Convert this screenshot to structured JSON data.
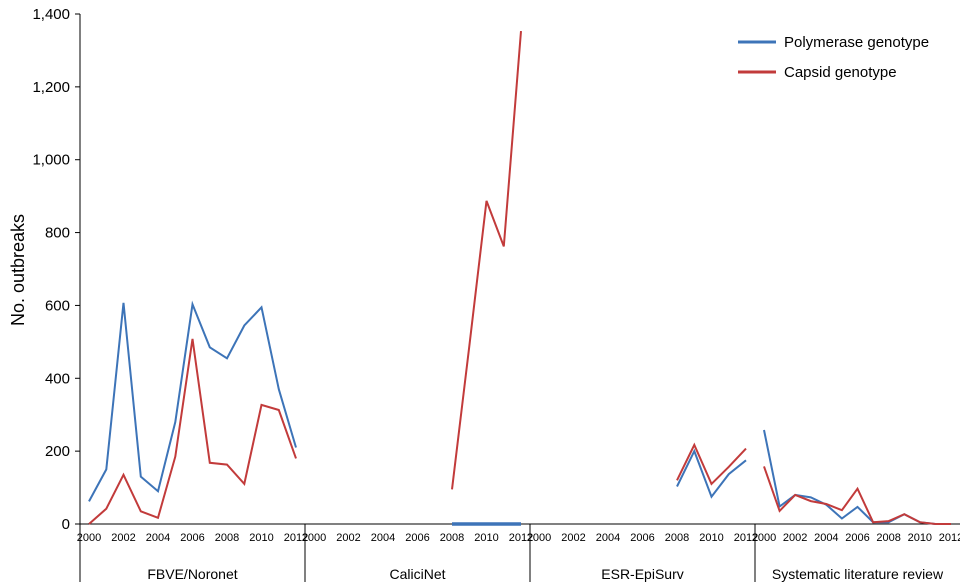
{
  "chart_data": {
    "type": "line",
    "ylabel": "No. outbreaks",
    "ylim": [
      0,
      1400
    ],
    "yticks": [
      0,
      200,
      400,
      600,
      800,
      1000,
      1200,
      1400
    ],
    "ytick_labels": [
      "0",
      "200",
      "400",
      "600",
      "800",
      "1,000",
      "1,200",
      "1,400"
    ],
    "xtick_labels": [
      "2000",
      "2002",
      "2004",
      "2006",
      "2008",
      "2010",
      "2012"
    ],
    "years": [
      2000,
      2001,
      2002,
      2003,
      2004,
      2005,
      2006,
      2007,
      2008,
      2009,
      2010,
      2011,
      2012
    ],
    "legend": {
      "position": "top-right"
    },
    "colors": {
      "polymerase": "#3d74b8",
      "capsid": "#c23b3b"
    },
    "series_names": [
      "Polymerase genotype",
      "Capsid genotype"
    ],
    "panels": [
      {
        "label": "FBVE/Noronet",
        "series": [
          {
            "name": "Polymerase genotype",
            "values": [
              62,
              150,
              607,
              130,
              90,
              280,
              603,
              485,
              455,
              545,
              595,
              370,
              210
            ]
          },
          {
            "name": "Capsid genotype",
            "values": [
              0,
              42,
              135,
              35,
              17,
              185,
              508,
              168,
              163,
              110,
              327,
              313,
              180
            ]
          }
        ]
      },
      {
        "label": "CaliciNet",
        "series": [
          {
            "name": "Polymerase genotype",
            "values": [
              null,
              null,
              null,
              null,
              null,
              null,
              null,
              null,
              0,
              0,
              0,
              0,
              0
            ]
          },
          {
            "name": "Capsid genotype",
            "values": [
              null,
              null,
              null,
              null,
              null,
              null,
              null,
              null,
              95,
              488,
              887,
              762,
              1353
            ]
          }
        ]
      },
      {
        "label": "ESR-EpiSurv",
        "series": [
          {
            "name": "Polymerase genotype",
            "values": [
              null,
              null,
              null,
              null,
              null,
              null,
              null,
              null,
              103,
              200,
              75,
              137,
              175
            ]
          },
          {
            "name": "Capsid genotype",
            "values": [
              null,
              null,
              null,
              null,
              null,
              null,
              null,
              null,
              120,
              217,
              110,
              157,
              207
            ]
          }
        ]
      },
      {
        "label": "Systematic literature review",
        "series": [
          {
            "name": "Polymerase genotype",
            "values": [
              258,
              48,
              80,
              73,
              53,
              15,
              47,
              5,
              5,
              27,
              5,
              0,
              0
            ]
          },
          {
            "name": "Capsid genotype",
            "values": [
              158,
              36,
              80,
              63,
              55,
              38,
              97,
              5,
              8,
              27,
              5,
              0,
              0
            ]
          }
        ]
      }
    ]
  }
}
